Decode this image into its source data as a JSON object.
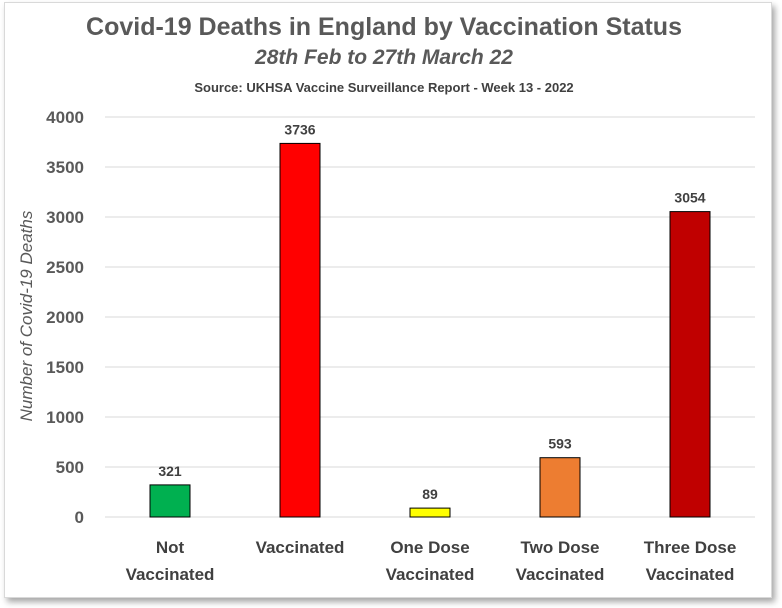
{
  "chart_data": {
    "type": "bar",
    "title": "Covid-19 Deaths in England by Vaccination Status",
    "subtitle": "28th Feb to 27th March 22",
    "source": "Source: UKHSA Vaccine Surveillance Report - Week 13 - 2022",
    "ylabel": "Number of Covid-19 Deaths",
    "xlabel": "",
    "ylim": [
      0,
      4000
    ],
    "yticks": [
      0,
      500,
      1000,
      1500,
      2000,
      2500,
      3000,
      3500,
      4000
    ],
    "grid": true,
    "categories": [
      [
        "Not",
        "Vaccinated"
      ],
      [
        "Vaccinated"
      ],
      [
        "One Dose",
        "Vaccinated"
      ],
      [
        "Two Dose",
        "Vaccinated"
      ],
      [
        "Three Dose",
        "Vaccinated"
      ]
    ],
    "values": [
      321,
      3736,
      89,
      593,
      3054
    ],
    "colors": [
      "#00b050",
      "#ff0000",
      "#ffff00",
      "#ed7d31",
      "#c00000"
    ]
  }
}
